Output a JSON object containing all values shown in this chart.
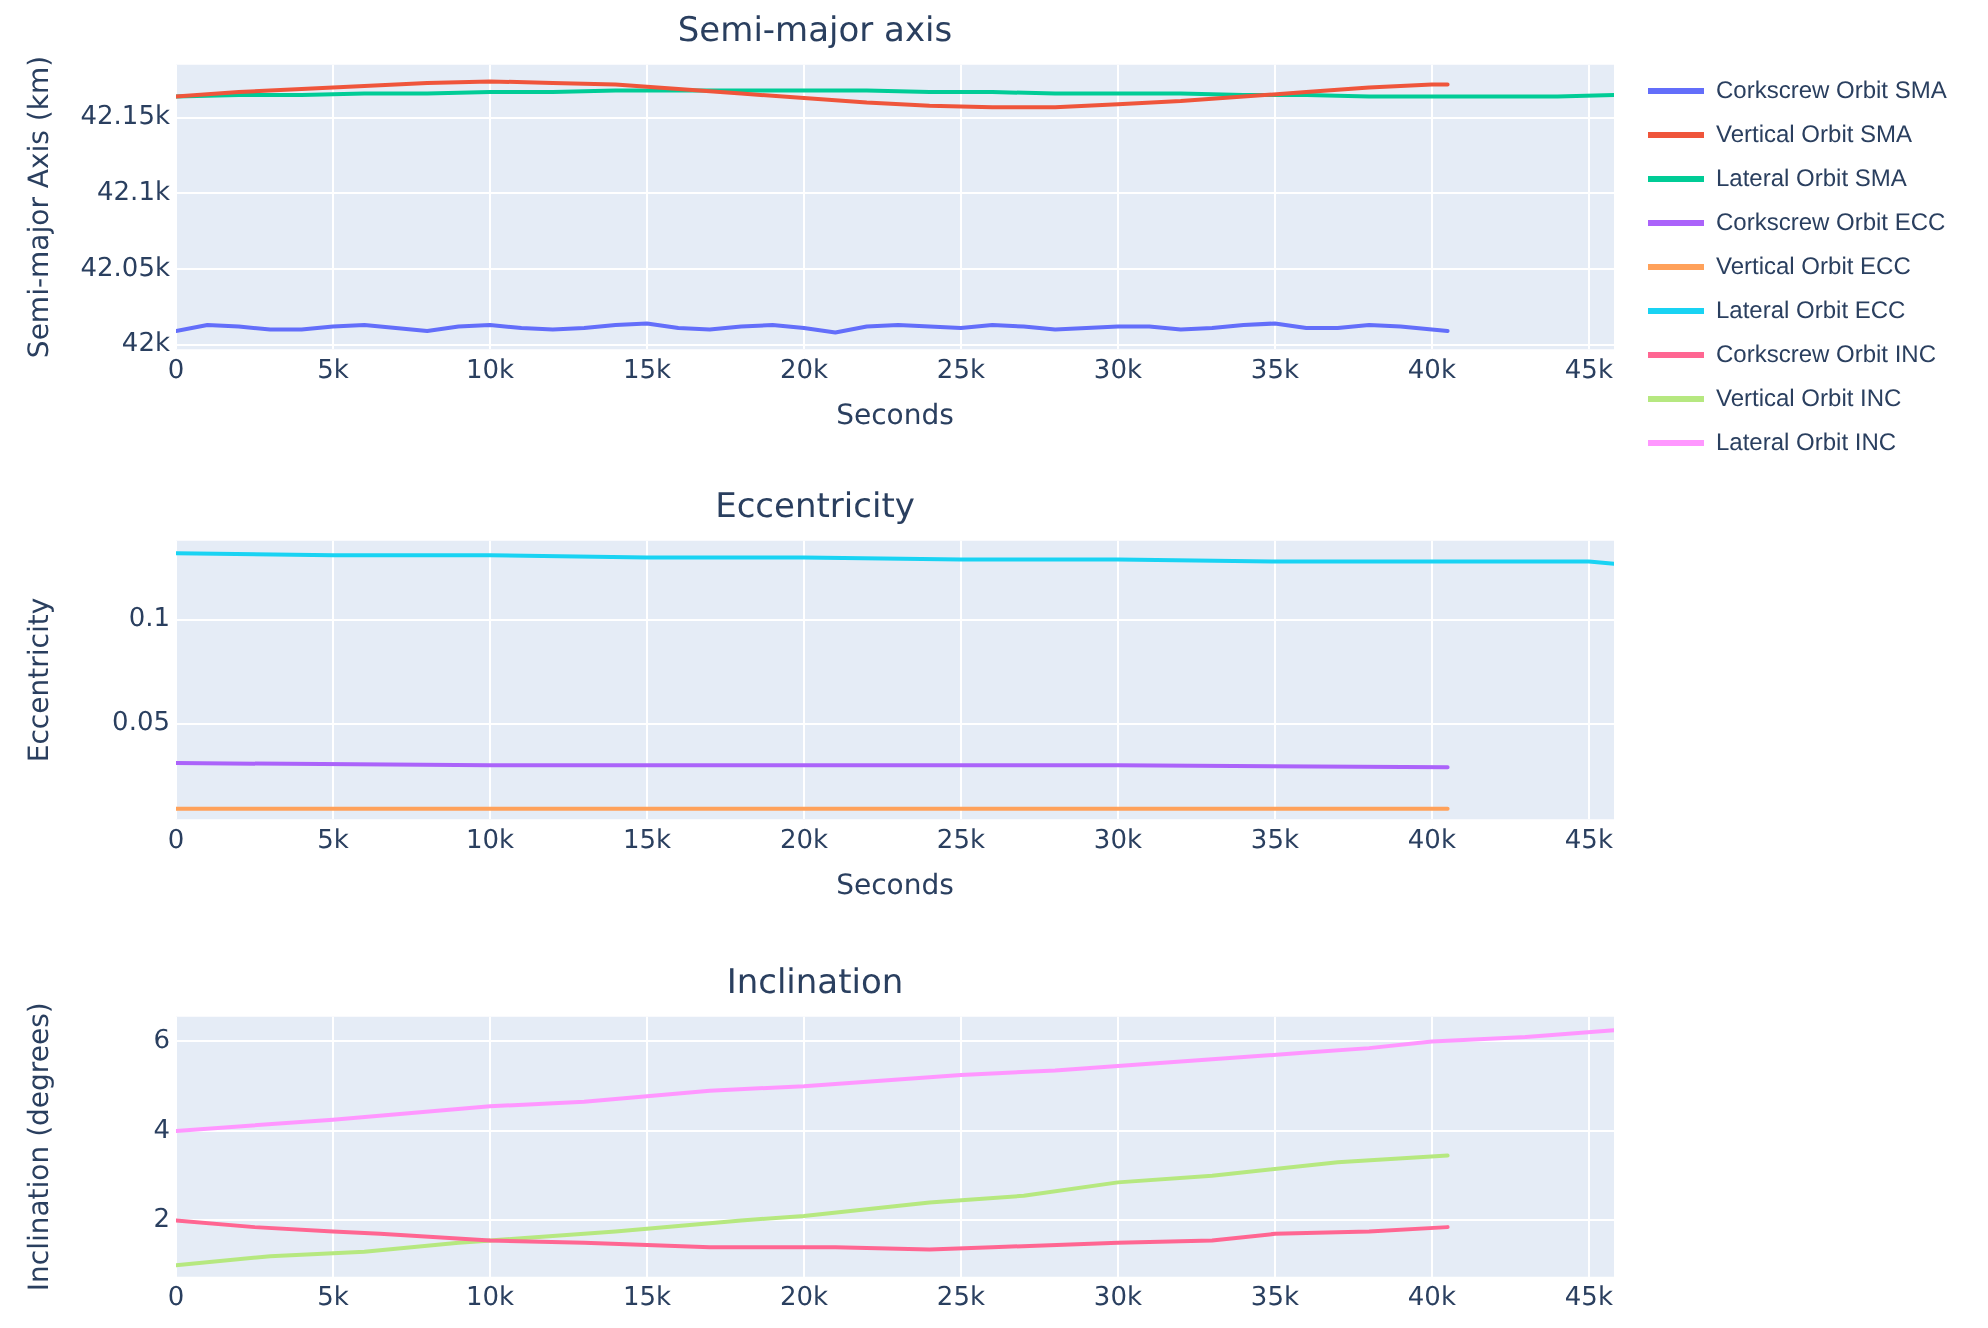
{
  "chart_data": [
    {
      "type": "line",
      "title": "Semi-major axis",
      "xlabel": "Seconds",
      "ylabel": "Semi-major Axis (km)",
      "xlim": [
        0,
        45800
      ],
      "ylim": [
        41997,
        42185
      ],
      "xticks": [
        {
          "value": 0,
          "label": "0"
        },
        {
          "value": 5000,
          "label": "5k"
        },
        {
          "value": 10000,
          "label": "10k"
        },
        {
          "value": 15000,
          "label": "15k"
        },
        {
          "value": 20000,
          "label": "20k"
        },
        {
          "value": 25000,
          "label": "25k"
        },
        {
          "value": 30000,
          "label": "30k"
        },
        {
          "value": 35000,
          "label": "35k"
        },
        {
          "value": 40000,
          "label": "40k"
        },
        {
          "value": 45000,
          "label": "45k"
        }
      ],
      "yticks": [
        {
          "value": 42000,
          "label": "42k"
        },
        {
          "value": 42050,
          "label": "42.05k"
        },
        {
          "value": 42100,
          "label": "42.1k"
        },
        {
          "value": 42150,
          "label": "42.15k"
        }
      ],
      "grid": true,
      "legend": "right",
      "marker": "none",
      "line_style": "solid",
      "series": [
        {
          "name": "Corkscrew Orbit SMA",
          "color": "#636efa",
          "x": [
            0,
            1000,
            2000,
            3000,
            4000,
            5000,
            6000,
            7000,
            8000,
            9000,
            10000,
            11000,
            12000,
            13000,
            14000,
            15000,
            16000,
            17000,
            18000,
            19000,
            20000,
            21000,
            22000,
            23000,
            24000,
            25000,
            26000,
            27000,
            28000,
            29000,
            30000,
            31000,
            32000,
            33000,
            34000,
            35000,
            36000,
            37000,
            38000,
            39000,
            40000,
            40500
          ],
          "values": [
            42009,
            42013,
            42012,
            42010,
            42010,
            42012,
            42013,
            42011,
            42009,
            42012,
            42013,
            42011,
            42010,
            42011,
            42013,
            42014,
            42011,
            42010,
            42012,
            42013,
            42011,
            42008,
            42012,
            42013,
            42012,
            42011,
            42013,
            42012,
            42010,
            42011,
            42012,
            42012,
            42010,
            42011,
            42013,
            42014,
            42011,
            42011,
            42013,
            42012,
            42010,
            42009
          ]
        },
        {
          "name": "Vertical Orbit SMA",
          "color": "#ef553b",
          "x": [
            0,
            2000,
            4000,
            6000,
            8000,
            10000,
            12000,
            14000,
            16000,
            18000,
            20000,
            22000,
            24000,
            26000,
            28000,
            30000,
            32000,
            34000,
            36000,
            38000,
            40000,
            40500
          ],
          "values": [
            42164,
            42167,
            42169,
            42171,
            42173,
            42174,
            42173,
            42172,
            42169,
            42166,
            42163,
            42160,
            42158,
            42157,
            42157,
            42159,
            42161,
            42164,
            42167,
            42170,
            42172,
            42172
          ]
        },
        {
          "name": "Lateral Orbit SMA",
          "color": "#00cc96",
          "x": [
            0,
            2000,
            4000,
            6000,
            8000,
            10000,
            12000,
            14000,
            16000,
            18000,
            20000,
            22000,
            24000,
            26000,
            28000,
            30000,
            32000,
            34000,
            36000,
            38000,
            40000,
            42000,
            44000,
            45800
          ],
          "values": [
            42164,
            42165,
            42165,
            42166,
            42166,
            42167,
            42167,
            42168,
            42168,
            42168,
            42168,
            42168,
            42167,
            42167,
            42166,
            42166,
            42166,
            42165,
            42165,
            42164,
            42164,
            42164,
            42164,
            42165
          ]
        }
      ]
    },
    {
      "type": "line",
      "title": "Eccentricity",
      "xlabel": "Seconds",
      "ylabel": "Eccentricity",
      "xlim": [
        0,
        45800
      ],
      "ylim": [
        0.004,
        0.138
      ],
      "xticks": [
        {
          "value": 0,
          "label": "0"
        },
        {
          "value": 5000,
          "label": "5k"
        },
        {
          "value": 10000,
          "label": "10k"
        },
        {
          "value": 15000,
          "label": "15k"
        },
        {
          "value": 20000,
          "label": "20k"
        },
        {
          "value": 25000,
          "label": "25k"
        },
        {
          "value": 30000,
          "label": "30k"
        },
        {
          "value": 35000,
          "label": "35k"
        },
        {
          "value": 40000,
          "label": "40k"
        },
        {
          "value": 45000,
          "label": "45k"
        }
      ],
      "yticks": [
        0.05,
        0.1
      ],
      "grid": true,
      "legend": "right",
      "marker": "none",
      "line_style": "solid",
      "series": [
        {
          "name": "Corkscrew Orbit ECC",
          "color": "#ab63fa",
          "x": [
            0,
            10000,
            20000,
            30000,
            40500
          ],
          "values": [
            0.031,
            0.03,
            0.03,
            0.03,
            0.029
          ]
        },
        {
          "name": "Vertical Orbit ECC",
          "color": "#ffa15a",
          "x": [
            0,
            40500
          ],
          "values": [
            0.009,
            0.009
          ]
        },
        {
          "name": "Lateral Orbit ECC",
          "color": "#19d3f3",
          "x": [
            0,
            5000,
            10000,
            15000,
            20000,
            25000,
            30000,
            35000,
            40000,
            45000,
            45800
          ],
          "values": [
            0.132,
            0.131,
            0.131,
            0.13,
            0.13,
            0.129,
            0.129,
            0.128,
            0.128,
            0.128,
            0.127
          ]
        }
      ]
    },
    {
      "type": "line",
      "title": "Inclination",
      "ylabel": "Inclination (degrees)",
      "xlim": [
        0,
        45800
      ],
      "ylim": [
        0.74,
        6.55
      ],
      "xticks": [
        {
          "value": 0,
          "label": "0"
        },
        {
          "value": 5000,
          "label": "5k"
        },
        {
          "value": 10000,
          "label": "10k"
        },
        {
          "value": 15000,
          "label": "15k"
        },
        {
          "value": 20000,
          "label": "20k"
        },
        {
          "value": 25000,
          "label": "25k"
        },
        {
          "value": 30000,
          "label": "30k"
        },
        {
          "value": 35000,
          "label": "35k"
        },
        {
          "value": 40000,
          "label": "40k"
        },
        {
          "value": 45000,
          "label": "45k"
        }
      ],
      "yticks": [
        2,
        4,
        6
      ],
      "grid": true,
      "legend": "right",
      "marker": "none",
      "line_style": "solid",
      "series": [
        {
          "name": "Corkscrew Orbit INC",
          "color": "#ff6692",
          "x": [
            0,
            2500,
            5000,
            6500,
            10000,
            13000,
            17000,
            21000,
            24000,
            26000,
            30000,
            33000,
            35000,
            38000,
            40500
          ],
          "values": [
            2.0,
            1.85,
            1.75,
            1.7,
            1.55,
            1.5,
            1.4,
            1.4,
            1.35,
            1.4,
            1.5,
            1.55,
            1.7,
            1.75,
            1.85
          ]
        },
        {
          "name": "Vertical Orbit INC",
          "color": "#b6e880",
          "x": [
            0,
            3000,
            6000,
            9000,
            11000,
            14000,
            18000,
            20000,
            24000,
            27000,
            30000,
            33000,
            37000,
            40500
          ],
          "values": [
            1.0,
            1.2,
            1.3,
            1.5,
            1.6,
            1.75,
            2.0,
            2.1,
            2.4,
            2.55,
            2.85,
            3.0,
            3.3,
            3.45
          ]
        },
        {
          "name": "Lateral Orbit INC",
          "color": "#ff97ff",
          "x": [
            0,
            5000,
            10000,
            13000,
            17000,
            20000,
            25000,
            28000,
            33000,
            36000,
            38000,
            40000,
            43000,
            45800
          ],
          "values": [
            4.0,
            4.25,
            4.55,
            4.65,
            4.9,
            5.0,
            5.25,
            5.35,
            5.6,
            5.75,
            5.85,
            6.0,
            6.1,
            6.25
          ]
        }
      ]
    }
  ]
}
